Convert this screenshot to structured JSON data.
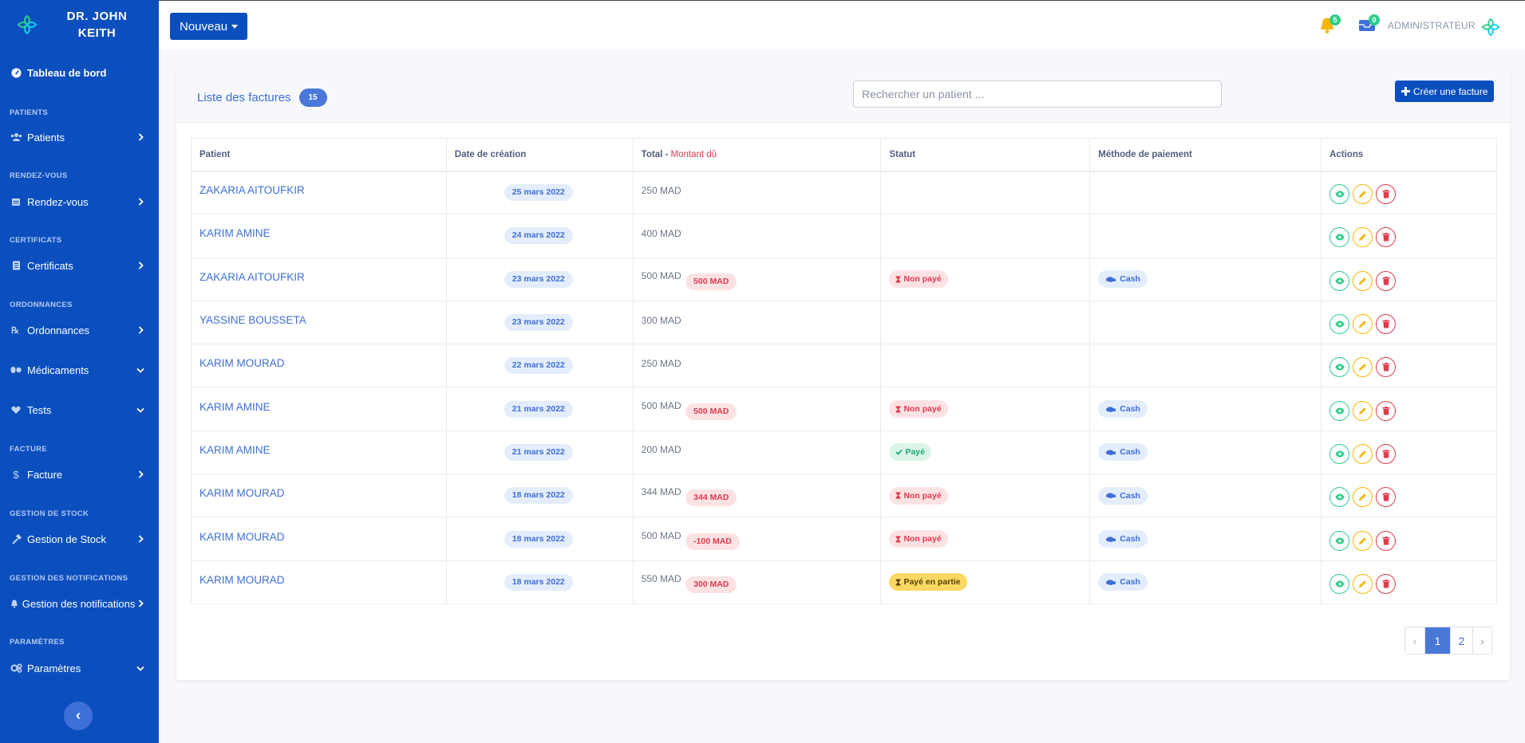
{
  "sidebar": {
    "brand_line1": "DR. JOHN",
    "brand_line2": "KEITH",
    "dashboard": "Tableau de bord",
    "sections": {
      "patients": "PATIENTS",
      "rdv": "RENDEZ-VOUS",
      "certificats": "CERTIFICATS",
      "ordonnances": "ORDONNANCES",
      "facture": "FACTURE",
      "stock": "GESTION DE STOCK",
      "notifications": "GESTION DES NOTIFICATIONS",
      "parametres": "PARAMÈTRES"
    },
    "items": {
      "patients": "Patients",
      "rdv": "Rendez-vous",
      "certificats": "Certificats",
      "ordonnances": "Ordonnances",
      "medicaments": "Médicaments",
      "tests": "Tests",
      "facture": "Facture",
      "stock": "Gestion de Stock",
      "notifications": "Gestion des notifications",
      "parametres": "Paramètres"
    }
  },
  "topbar": {
    "new_button": "Nouveau",
    "bell_count": "5",
    "messages_count": "0",
    "user_label": "ADMINISTRATEUR"
  },
  "card": {
    "title": "Liste des factures",
    "count": "15",
    "search_placeholder": "Rechercher un patient ...",
    "create_button": "Créer une facture"
  },
  "table": {
    "headers": {
      "patient": "Patient",
      "date": "Date de création",
      "total": "Total -",
      "due": "Montant dû",
      "status": "Statut",
      "method": "Méthode de paiement",
      "actions": "Actions"
    },
    "rows": [
      {
        "patient": "ZAKARIA AITOUFKIR",
        "date": "25 mars 2022",
        "total": "250 MAD",
        "due": "",
        "status": "",
        "method": ""
      },
      {
        "patient": "KARIM AMINE",
        "date": "24 mars 2022",
        "total": "400 MAD",
        "due": "",
        "status": "",
        "method": ""
      },
      {
        "patient": "ZAKARIA AITOUFKIR",
        "date": "23 mars 2022",
        "total": "500 MAD",
        "due": "500 MAD",
        "status": "Non payé",
        "method": "Cash"
      },
      {
        "patient": "YASSINE BOUSSETA",
        "date": "23 mars 2022",
        "total": "300 MAD",
        "due": "",
        "status": "",
        "method": ""
      },
      {
        "patient": "KARIM MOURAD",
        "date": "22 mars 2022",
        "total": "250 MAD",
        "due": "",
        "status": "",
        "method": ""
      },
      {
        "patient": "KARIM AMINE",
        "date": "21 mars 2022",
        "total": "500 MAD",
        "due": "500 MAD",
        "status": "Non payé",
        "method": "Cash"
      },
      {
        "patient": "KARIM AMINE",
        "date": "21 mars 2022",
        "total": "200 MAD",
        "due": "",
        "status": "Payé",
        "method": "Cash"
      },
      {
        "patient": "KARIM MOURAD",
        "date": "18 mars 2022",
        "total": "344 MAD",
        "due": "344 MAD",
        "status": "Non payé",
        "method": "Cash"
      },
      {
        "patient": "KARIM MOURAD",
        "date": "18 mars 2022",
        "total": "500 MAD",
        "due": "-100 MAD",
        "status": "Non payé",
        "method": "Cash"
      },
      {
        "patient": "KARIM MOURAD",
        "date": "18 mars 2022",
        "total": "550 MAD",
        "due": "300 MAD",
        "status": "Payé en partie",
        "method": "Cash"
      }
    ]
  },
  "pagination": {
    "prev": "‹",
    "pages": [
      "1",
      "2"
    ],
    "next": "›",
    "active": "1"
  },
  "colors": {
    "primary": "#0b4fbf",
    "link": "#3e6fd8",
    "success": "#2dce89",
    "warning": "#f7b500",
    "danger": "#e23a4e"
  }
}
